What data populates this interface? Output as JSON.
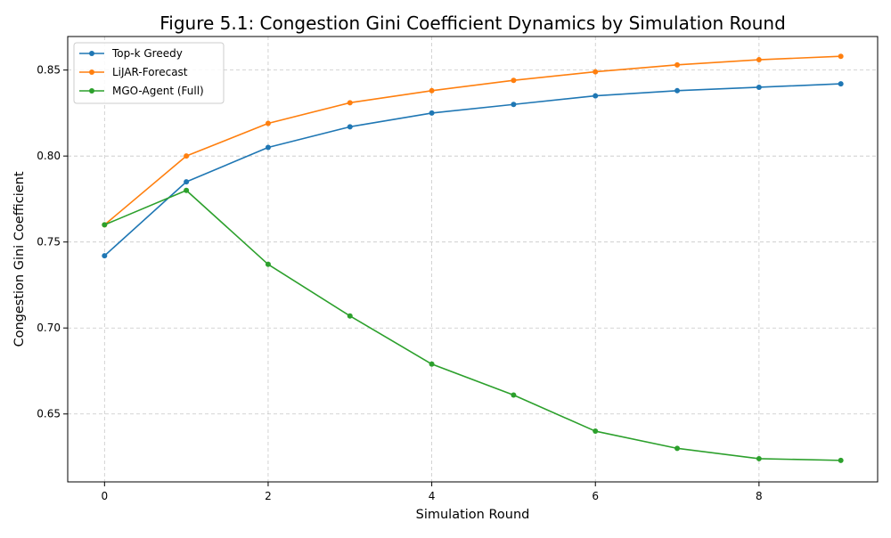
{
  "chart_data": {
    "type": "line",
    "title": "Figure 5.1: Congestion Gini Coefficient Dynamics by Simulation Round",
    "xlabel": "Simulation Round",
    "ylabel": "Congestion Gini Coefficient",
    "x": [
      0,
      1,
      2,
      3,
      4,
      5,
      6,
      7,
      8,
      9
    ],
    "xlim": [
      -0.45,
      9.45
    ],
    "ylim": [
      0.6105,
      0.8695
    ],
    "xticks": [
      0,
      2,
      4,
      6,
      8
    ],
    "xtick_labels": [
      "0",
      "2",
      "4",
      "6",
      "8"
    ],
    "yticks": [
      0.65,
      0.7,
      0.75,
      0.8,
      0.85
    ],
    "ytick_labels": [
      "0.65",
      "0.70",
      "0.75",
      "0.80",
      "0.85"
    ],
    "grid": true,
    "legend_position": "top-left",
    "series": [
      {
        "name": "Top-k Greedy",
        "color": "#1f77b4",
        "values": [
          0.742,
          0.785,
          0.805,
          0.817,
          0.825,
          0.83,
          0.835,
          0.838,
          0.84,
          0.842
        ]
      },
      {
        "name": "LiJAR-Forecast",
        "color": "#ff7f0e",
        "values": [
          0.76,
          0.8,
          0.819,
          0.831,
          0.838,
          0.844,
          0.849,
          0.853,
          0.856,
          0.858
        ]
      },
      {
        "name": "MGO-Agent (Full)",
        "color": "#2ca02c",
        "values": [
          0.76,
          0.78,
          0.737,
          0.707,
          0.679,
          0.661,
          0.64,
          0.63,
          0.624,
          0.623
        ]
      }
    ]
  }
}
